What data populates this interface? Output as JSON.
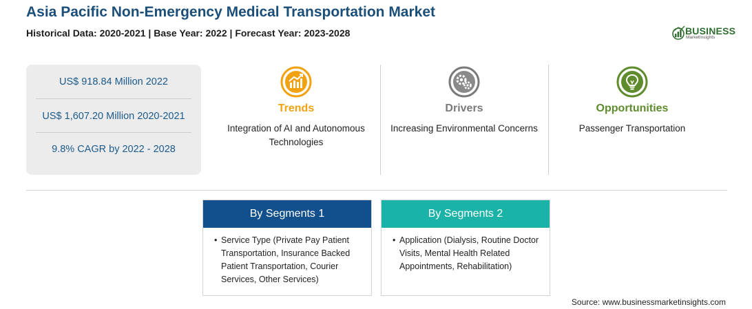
{
  "header": {
    "title": "Asia Pacific Non-Emergency Medical Transportation Market",
    "subtitle": "Historical Data: 2020-2021 | Base Year: 2022 | Forecast Year: 2023-2028"
  },
  "logo": {
    "word": "BUSINESS",
    "sub": "MarketInsights",
    "color": "#2e6e2e"
  },
  "stats": [
    "US$ 918.84 Million 2022",
    "US$ 1,607.20 Million 2020-2021",
    "9.8% CAGR by 2022 - 2028"
  ],
  "columns": [
    {
      "label": "Trends",
      "text": "Integration of AI and Autonomous Technologies",
      "color": "#f2a20f",
      "icon": "chart-up-icon"
    },
    {
      "label": "Drivers",
      "text": "Increasing Environmental Concerns",
      "color": "#7a7a7a",
      "icon": "gears-icon"
    },
    {
      "label": "Opportunities",
      "text": "Passenger Transportation",
      "color": "#5e8b2b",
      "icon": "lightbulb-icon"
    }
  ],
  "segments": [
    {
      "title": "By Segments 1",
      "text": "Service Type (Private Pay Patient Transportation, Insurance Backed Patient Transportation, Courier Services, Other Services)",
      "color": "#124f8d"
    },
    {
      "title": "By Segments 2",
      "text": "Application (Dialysis, Routine Doctor Visits, Mental Health Related Appointments, Rehabilitation)",
      "color": "#1bb3a8"
    }
  ],
  "bullet": "•",
  "source": "Source: www.businessmarketinsights.com"
}
